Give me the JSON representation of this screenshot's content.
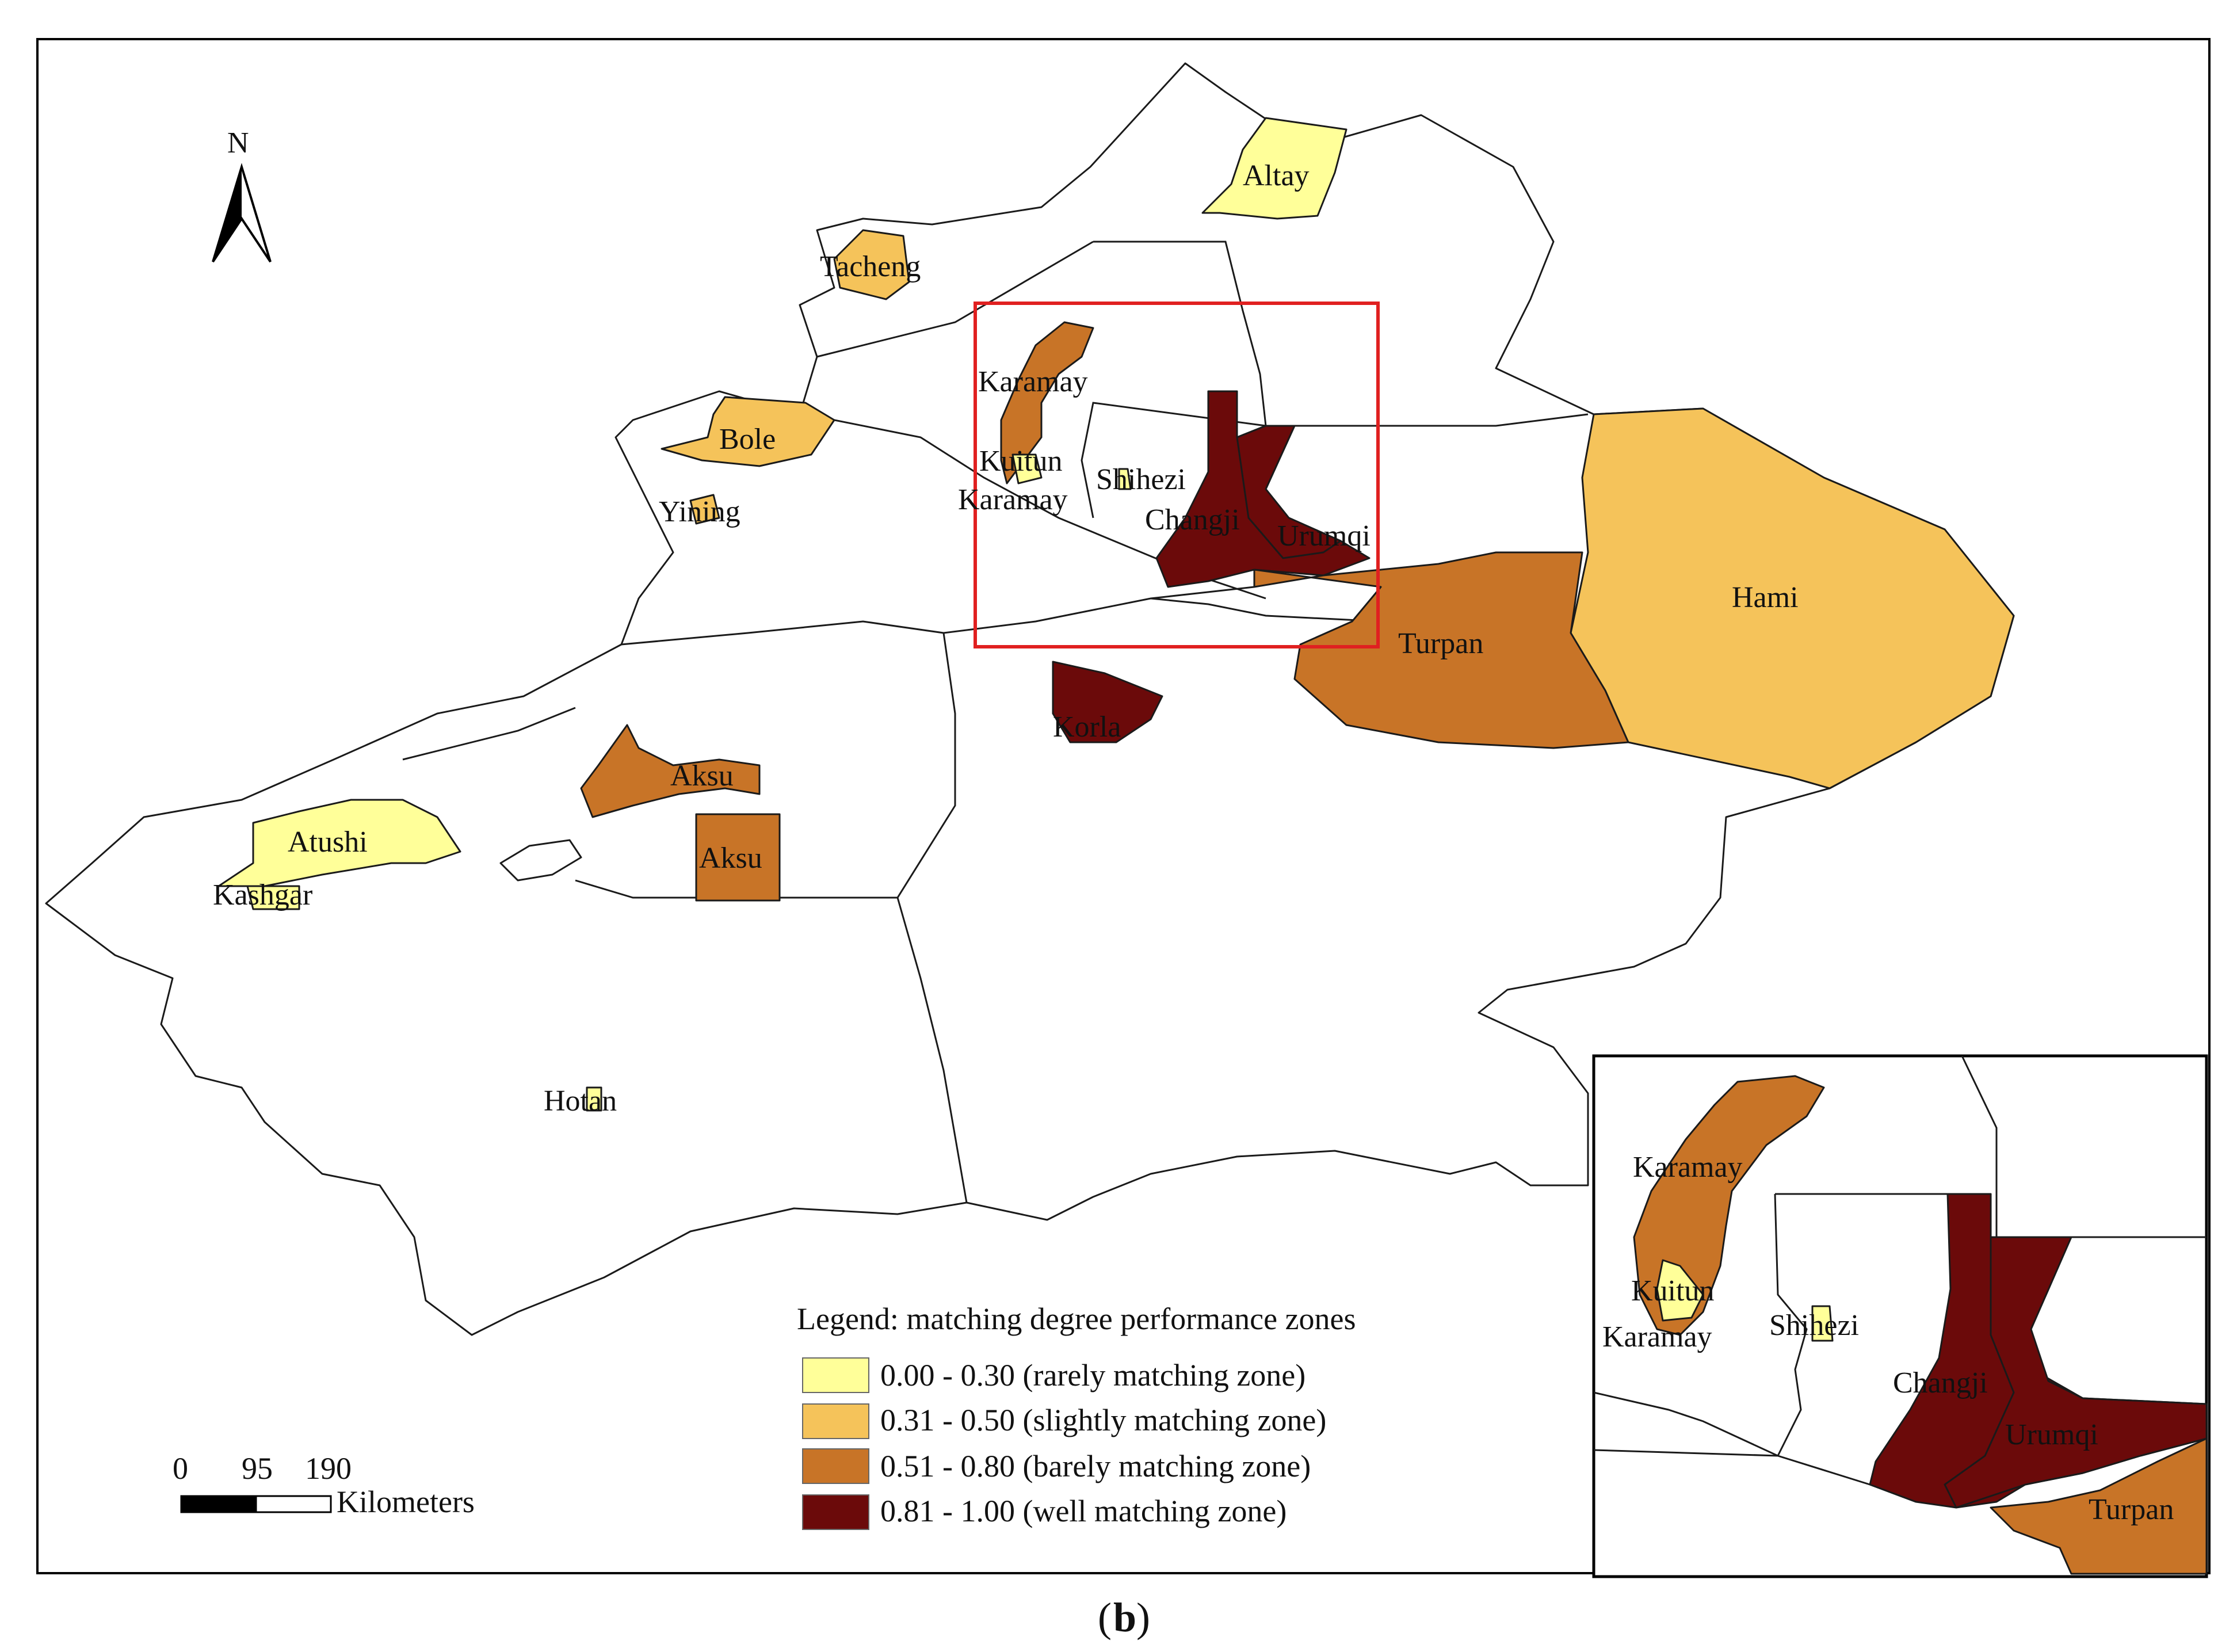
{
  "caption": {
    "open": "(",
    "letter": "b",
    "close": ")"
  },
  "north_arrow": {
    "label": "N"
  },
  "scale_bar": {
    "ticks": [
      "0",
      "95",
      "190"
    ],
    "unit": "Kilometers"
  },
  "legend": {
    "title": "Legend: matching degree performance zones",
    "items": [
      {
        "range": "0.00 - 0.30 (rarely matching zone)",
        "color": "#ffff99"
      },
      {
        "range": "0.31 - 0.50 (slightly matching zone)",
        "color": "#f5c35a"
      },
      {
        "range": "0.51 - 0.80 (barely matching zone)",
        "color": "#c87427"
      },
      {
        "range": "0.81 - 1.00 (well matching zone)",
        "color": "#6b0a0a"
      }
    ]
  },
  "colors": {
    "rare": "#ffff99",
    "slight": "#f5c35a",
    "barely": "#c87427",
    "well": "#6b0a0a",
    "inset_frame": "#e02020"
  },
  "labels": {
    "altay": "Altay",
    "tacheng": "Tacheng",
    "karamay": "Karamay",
    "bole": "Bole",
    "kuitun": "Kuitun",
    "shihezi": "Shihezi",
    "karamay2": "Karamay",
    "yining": "Yining",
    "changji": "Changji",
    "urumqi": "Urumqi",
    "hami": "Hami",
    "turpan": "Turpan",
    "korla": "Korla",
    "aksu": "Aksu",
    "aksu2": "Aksu",
    "atushi": "Atushi",
    "kashgar": "Kashgar",
    "hotan": "Hotan"
  },
  "inset": {
    "karamay": "Karamay",
    "kuitun": "Kuitun",
    "karamay2": "Karamay",
    "shihezi": "Shihezi",
    "changji": "Changji",
    "urumqi": "Urumqi",
    "turpan": "Turpan"
  }
}
